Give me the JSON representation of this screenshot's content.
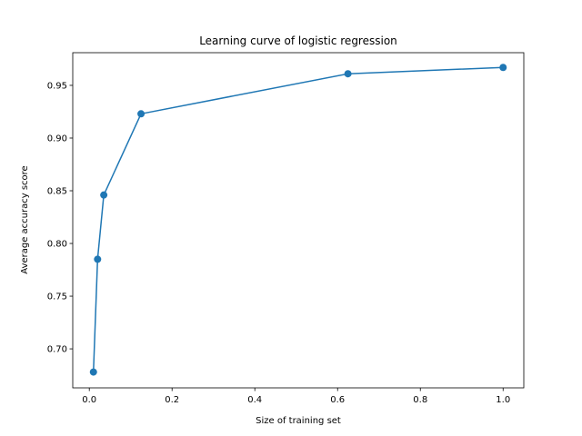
{
  "chart_data": {
    "type": "line",
    "title": "Learning curve of logistic regression",
    "xlabel": "Size of training set",
    "ylabel": "Average accuracy score",
    "xlim": [
      -0.04,
      1.05
    ],
    "ylim": [
      0.663,
      0.981
    ],
    "xticks": [
      0.0,
      0.2,
      0.4,
      0.6,
      0.8,
      1.0
    ],
    "xtick_labels": [
      "0.0",
      "0.2",
      "0.4",
      "0.6",
      "0.8",
      "1.0"
    ],
    "yticks": [
      0.7,
      0.75,
      0.8,
      0.85,
      0.9,
      0.95
    ],
    "ytick_labels": [
      "0.70",
      "0.75",
      "0.80",
      "0.85",
      "0.90",
      "0.95"
    ],
    "grid": false,
    "series": [
      {
        "color": "#1f77b4",
        "marker": "circle",
        "x": [
          0.01,
          0.02,
          0.035,
          0.125,
          0.625,
          1.0
        ],
        "y": [
          0.678,
          0.785,
          0.846,
          0.923,
          0.961,
          0.967
        ]
      }
    ]
  }
}
